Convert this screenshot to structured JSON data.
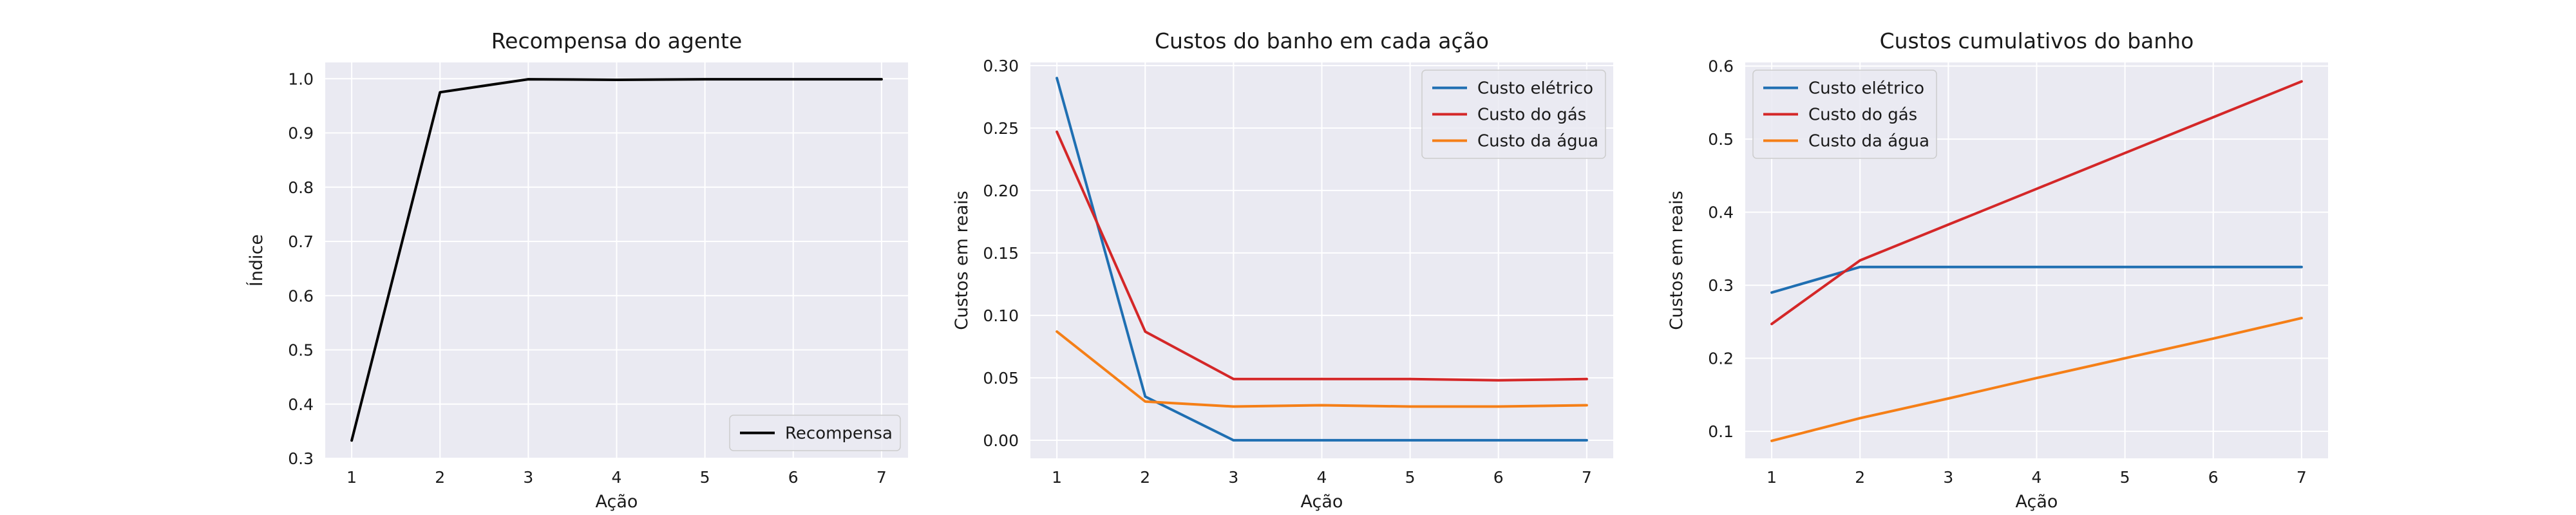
{
  "chart_data": [
    {
      "type": "line",
      "title": "Recompensa do agente",
      "xlabel": "Ação",
      "ylabel": "Índice",
      "x": [
        1,
        2,
        3,
        4,
        5,
        6,
        7
      ],
      "xticks": [
        "1",
        "2",
        "3",
        "4",
        "5",
        "6",
        "7"
      ],
      "xlim": [
        0.7,
        7.3
      ],
      "ylim": [
        0.3,
        1.03
      ],
      "yticks": [
        "0.3",
        "0.4",
        "0.5",
        "0.6",
        "0.7",
        "0.8",
        "0.9",
        "1.0"
      ],
      "grid": true,
      "legend_position": "bottom-right",
      "series": [
        {
          "name": "Recompensa",
          "color": "#000000",
          "values": [
            0.333,
            0.975,
            0.999,
            0.998,
            0.999,
            0.999,
            0.999
          ]
        }
      ]
    },
    {
      "type": "line",
      "title": "Custos do banho em cada ação",
      "xlabel": "Ação",
      "ylabel": "Custos em reais",
      "x": [
        1,
        2,
        3,
        4,
        5,
        6,
        7
      ],
      "xticks": [
        "1",
        "2",
        "3",
        "4",
        "5",
        "6",
        "7"
      ],
      "xlim": [
        0.7,
        7.3
      ],
      "ylim": [
        -0.0145,
        0.3025
      ],
      "yticks": [
        "0.00",
        "0.05",
        "0.10",
        "0.15",
        "0.20",
        "0.25",
        "0.30"
      ],
      "grid": true,
      "legend_position": "top-right",
      "series": [
        {
          "name": "Custo elétrico",
          "color": "#1f6fb2",
          "values": [
            0.29,
            0.035,
            0.0,
            0.0,
            0.0,
            0.0,
            0.0
          ]
        },
        {
          "name": "Custo do gás",
          "color": "#d42728",
          "values": [
            0.247,
            0.087,
            0.049,
            0.049,
            0.049,
            0.048,
            0.049
          ]
        },
        {
          "name": "Custo da água",
          "color": "#f57f17",
          "values": [
            0.087,
            0.031,
            0.027,
            0.028,
            0.027,
            0.027,
            0.028
          ]
        }
      ]
    },
    {
      "type": "line",
      "title": "Custos cumulativos do banho",
      "xlabel": "Ação",
      "ylabel": "Custos em reais",
      "x": [
        1,
        2,
        3,
        4,
        5,
        6,
        7
      ],
      "xticks": [
        "1",
        "2",
        "3",
        "4",
        "5",
        "6",
        "7"
      ],
      "xlim": [
        0.7,
        7.3
      ],
      "ylim": [
        0.063,
        0.605
      ],
      "yticks": [
        "0.1",
        "0.2",
        "0.3",
        "0.4",
        "0.5",
        "0.6"
      ],
      "grid": true,
      "legend_position": "top-left",
      "series": [
        {
          "name": "Custo elétrico",
          "color": "#1f6fb2",
          "values": [
            0.29,
            0.325,
            0.325,
            0.325,
            0.325,
            0.325,
            0.325
          ]
        },
        {
          "name": "Custo do gás",
          "color": "#d42728",
          "values": [
            0.247,
            0.334,
            0.383,
            0.432,
            0.481,
            0.53,
            0.579
          ]
        },
        {
          "name": "Custo da água",
          "color": "#f57f17",
          "values": [
            0.087,
            0.118,
            0.145,
            0.173,
            0.2,
            0.227,
            0.255
          ]
        }
      ]
    }
  ]
}
